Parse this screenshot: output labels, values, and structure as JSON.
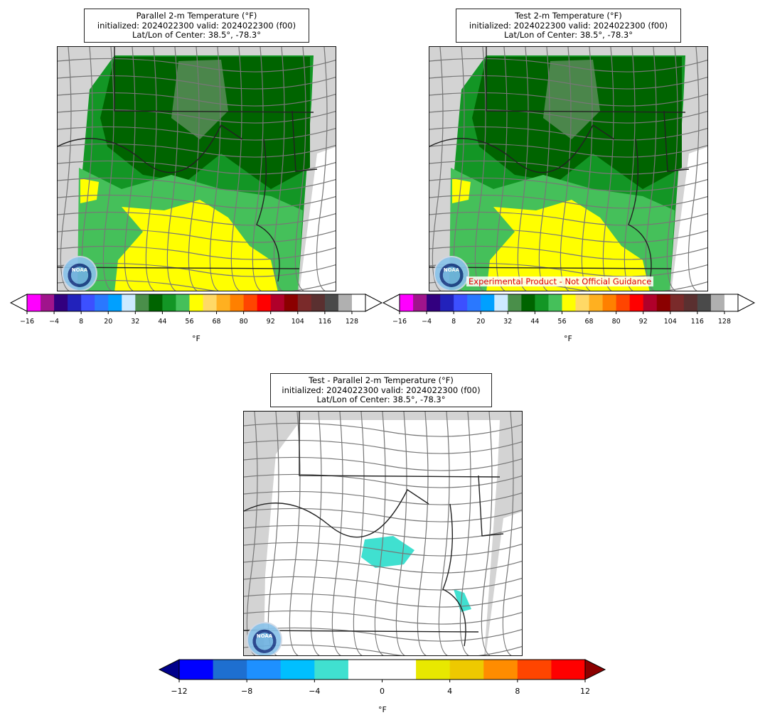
{
  "panels": {
    "parallel": {
      "title_line1": "Parallel 2-m Temperature (°F)",
      "title_line2": "initialized: 2024022300 valid: 2024022300 (f00)",
      "title_line3": "Lat/Lon of Center: 38.5°, -78.3°"
    },
    "test": {
      "title_line1": "Test 2-m Temperature (°F)",
      "title_line2": "initialized: 2024022300 valid: 2024022300 (f00)",
      "title_line3": "Lat/Lon of Center: 38.5°, -78.3°",
      "disclaimer": "Experimental Product - Not Official Guidance"
    },
    "diff": {
      "title_line1": "Test - Parallel 2-m Temperature (°F)",
      "title_line2": "initialized: 2024022300 valid: 2024022300 (f00)",
      "title_line3": "Lat/Lon of Center: 38.5°, -78.3°"
    }
  },
  "logo_text": "NOAA",
  "temp_colorbar": {
    "unit": "°F",
    "ticks": [
      "−16",
      "−4",
      "8",
      "20",
      "32",
      "44",
      "56",
      "68",
      "80",
      "92",
      "104",
      "116",
      "128"
    ],
    "colors": [
      "#ff00ff",
      "#a0148c",
      "#32007f",
      "#2222bb",
      "#3c50ff",
      "#2a78ff",
      "#00a0ff",
      "#cdeaff",
      "#4a8f4a",
      "#006400",
      "#139625",
      "#45c05a",
      "#ffff00",
      "#ffd966",
      "#ffb020",
      "#ff8000",
      "#ff4500",
      "#ff0000",
      "#b0002a",
      "#8b0000",
      "#7a2a2a",
      "#5a3030",
      "#4a4a4a",
      "#b0b0b0",
      "#ffffff"
    ]
  },
  "diff_colorbar": {
    "unit": "°F",
    "ticks": [
      "−12",
      "−8",
      "−4",
      "0",
      "4",
      "8",
      "12"
    ],
    "colors": [
      "#0000ff",
      "#1e6fd0",
      "#1e90ff",
      "#00bfff",
      "#40e0d0",
      "#ffffff",
      "#ffffff",
      "#e8e800",
      "#eec900",
      "#ff8c00",
      "#ff4500",
      "#ff0000"
    ],
    "under_color": "#00008b",
    "over_color": "#8b0000"
  }
}
